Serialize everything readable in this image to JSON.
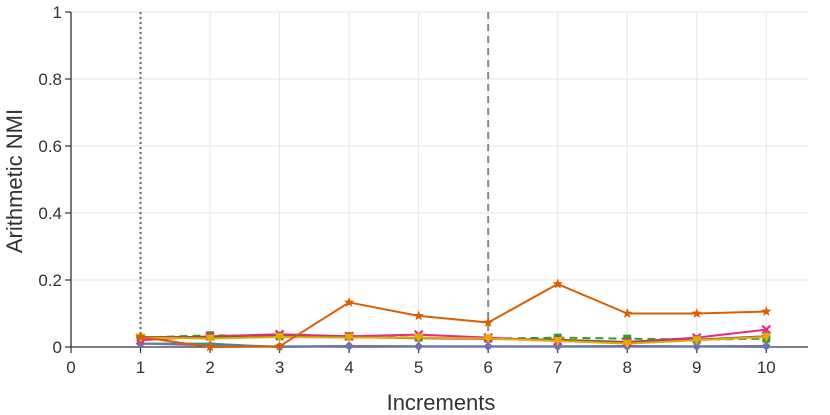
{
  "chart_data": {
    "type": "line",
    "title": "",
    "xlabel": "Increments",
    "ylabel": "Arithmetic NMI",
    "xlim": [
      0,
      10.6
    ],
    "ylim": [
      0,
      1
    ],
    "x_ticks": [
      "0",
      "1",
      "2",
      "3",
      "4",
      "5",
      "6",
      "7",
      "8",
      "9",
      "10"
    ],
    "y_ticks": [
      "0",
      "0.2",
      "0.4",
      "0.6",
      "0.8",
      "1"
    ],
    "grid": true,
    "legend": "none",
    "vlines": [
      {
        "x": 1,
        "style": "dotted",
        "color": "#666666"
      },
      {
        "x": 6,
        "style": "dashed",
        "color": "#888888"
      }
    ],
    "x": [
      1,
      2,
      3,
      4,
      5,
      6,
      7,
      8,
      9,
      10
    ],
    "series": [
      {
        "color": "#1b9e77",
        "dash": "none",
        "marker": "cross",
        "values": [
          0.01,
          0.01,
          0.0,
          0.003,
          0.002,
          0.002,
          0.002,
          0.003,
          0.002,
          0.003
        ]
      },
      {
        "color": "#7570b3",
        "dash": "none",
        "marker": "circle",
        "values": [
          0.01,
          0.005,
          0.002,
          0.003,
          0.002,
          0.002,
          0.002,
          0.002,
          0.002,
          0.003
        ]
      },
      {
        "color": "#2ca02c",
        "dash": "8,5",
        "marker": "square",
        "values": [
          0.028,
          0.035,
          0.032,
          0.032,
          0.028,
          0.025,
          0.028,
          0.025,
          0.022,
          0.025
        ]
      },
      {
        "color": "#e7298a",
        "dash": "none",
        "marker": "x",
        "values": [
          0.02,
          0.032,
          0.038,
          0.032,
          0.037,
          0.028,
          0.018,
          0.015,
          0.028,
          0.052
        ]
      },
      {
        "color": "#8c564b",
        "dash": "none",
        "marker": "diamond",
        "values": [
          0.03,
          0.03,
          0.032,
          0.03,
          0.026,
          0.024,
          0.022,
          0.015,
          0.022,
          0.032
        ]
      },
      {
        "color": "#e6ab02",
        "dash": "none",
        "marker": "triangle-down",
        "values": [
          0.028,
          0.025,
          0.03,
          0.028,
          0.028,
          0.025,
          0.018,
          0.01,
          0.02,
          0.03
        ]
      },
      {
        "color": "#d95f02",
        "dash": "none",
        "marker": "star",
        "values": [
          0.03,
          0.0,
          0.002,
          0.133,
          0.093,
          0.073,
          0.188,
          0.1,
          0.1,
          0.106
        ]
      }
    ]
  }
}
